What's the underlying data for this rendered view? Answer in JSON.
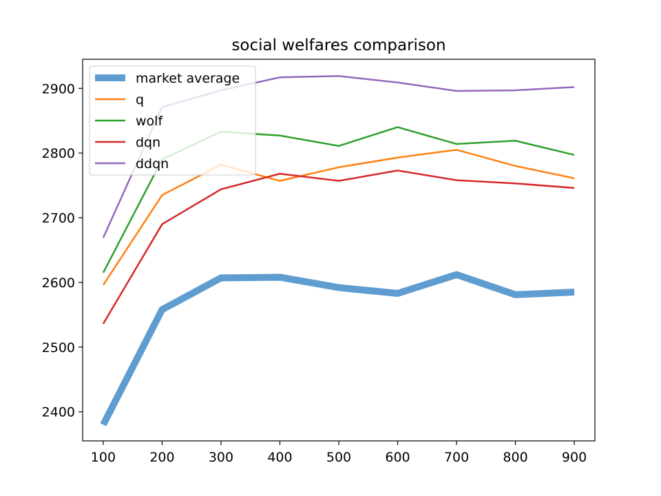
{
  "chart_data": {
    "type": "line",
    "title": "social welfares comparison",
    "xlabel": "",
    "ylabel": "",
    "x": [
      100,
      200,
      300,
      400,
      500,
      600,
      700,
      800,
      900
    ],
    "xlim": [
      65,
      935
    ],
    "ylim": [
      2355,
      2945
    ],
    "xticks": [
      100,
      200,
      300,
      400,
      500,
      600,
      700,
      800,
      900
    ],
    "yticks": [
      2400,
      2500,
      2600,
      2700,
      2800,
      2900
    ],
    "grid": false,
    "legend_position": "top-left",
    "series": [
      {
        "name": "market average",
        "color": "#5f9dd0",
        "values": [
          2380,
          2558,
          2607,
          2608,
          2592,
          2583,
          2612,
          2581,
          2585
        ]
      },
      {
        "name": "q",
        "color": "#ff7f0e",
        "values": [
          2596,
          2735,
          2782,
          2757,
          2778,
          2793,
          2805,
          2780,
          2761
        ]
      },
      {
        "name": "wolf",
        "color": "#2ca02c",
        "values": [
          2615,
          2790,
          2833,
          2827,
          2811,
          2840,
          2814,
          2819,
          2797
        ]
      },
      {
        "name": "dqn",
        "color": "#d62728",
        "values": [
          2536,
          2690,
          2744,
          2768,
          2757,
          2773,
          2758,
          2753,
          2746
        ]
      },
      {
        "name": "ddqn",
        "color": "#9467bd",
        "values": [
          2669,
          2871,
          2897,
          2917,
          2919,
          2909,
          2896,
          2897,
          2902
        ]
      }
    ]
  }
}
